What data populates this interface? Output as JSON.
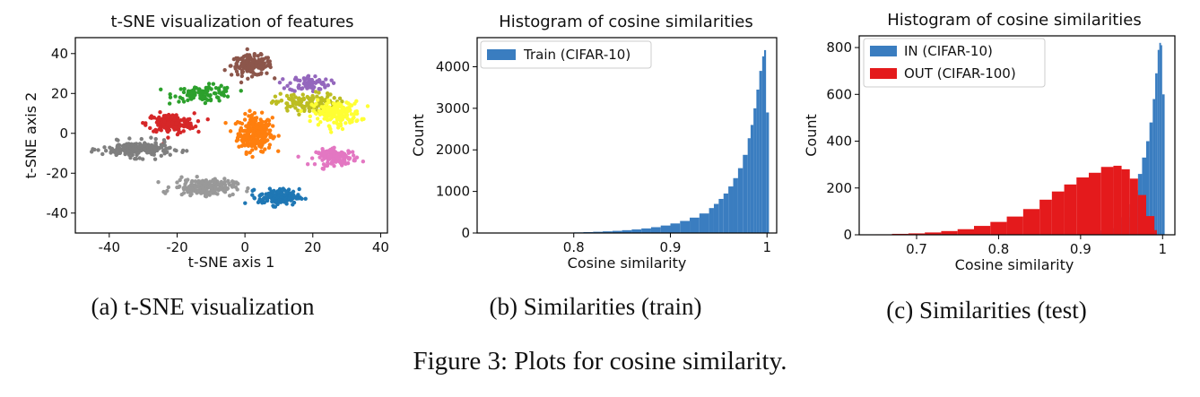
{
  "figure": {
    "caption": "Figure 3: Plots for cosine similarity.",
    "subcaptions": [
      "(a) t-SNE visualization",
      "(b) Similarities (train)",
      "(c) Similarities (test)"
    ]
  },
  "chart_data": [
    {
      "type": "scatter",
      "title": "t-SNE visualization of features",
      "xlabel": "t-SNE axis 1",
      "ylabel": "t-SNE axis 2",
      "xlim": [
        -50,
        42
      ],
      "ylim": [
        -50,
        48
      ],
      "xticks": [
        -40,
        -20,
        0,
        20,
        40
      ],
      "yticks": [
        -40,
        -20,
        0,
        20,
        40
      ],
      "clusters": [
        {
          "color": "#ff7f0e",
          "center": [
            3,
            0
          ],
          "spread": [
            5,
            9
          ],
          "n": 260
        },
        {
          "color": "#8c564b",
          "center": [
            2,
            34
          ],
          "spread": [
            6,
            5
          ],
          "n": 160
        },
        {
          "color": "#2ca02c",
          "center": [
            -12,
            20
          ],
          "spread": [
            9,
            4
          ],
          "n": 100
        },
        {
          "color": "#d62728",
          "center": [
            -22,
            5
          ],
          "spread": [
            7,
            5
          ],
          "n": 150
        },
        {
          "color": "#9467bd",
          "center": [
            19,
            25
          ],
          "spread": [
            6,
            4
          ],
          "n": 70
        },
        {
          "color": "#bcbd22",
          "center": [
            18,
            15
          ],
          "spread": [
            9,
            5
          ],
          "n": 130
        },
        {
          "color": "#ffff33",
          "center": [
            27,
            10
          ],
          "spread": [
            7,
            6
          ],
          "n": 170
        },
        {
          "color": "#e377c2",
          "center": [
            27,
            -12
          ],
          "spread": [
            6,
            4
          ],
          "n": 120
        },
        {
          "color": "#7f7f7f",
          "center": [
            -32,
            -8
          ],
          "spread": [
            10,
            4
          ],
          "n": 200
        },
        {
          "color": "#999999",
          "center": [
            -12,
            -27
          ],
          "spread": [
            9,
            4
          ],
          "n": 180
        },
        {
          "color": "#1f77b4",
          "center": [
            10,
            -32
          ],
          "spread": [
            6,
            4
          ],
          "n": 150
        }
      ]
    },
    {
      "type": "bar",
      "title": "Histogram of cosine similarities",
      "xlabel": "Cosine similarity",
      "ylabel": "Count",
      "xlim": [
        0.7,
        1.01
      ],
      "ylim": [
        0,
        4700
      ],
      "xticks": [
        0.8,
        0.9,
        1.0
      ],
      "yticks": [
        0,
        1000,
        2000,
        3000,
        4000
      ],
      "legend_position": "top-left",
      "series": [
        {
          "name": "Train (CIFAR-10)",
          "color": "#3a7dc0",
          "bins": [
            [
              0.8,
              15
            ],
            [
              0.81,
              22
            ],
            [
              0.82,
              30
            ],
            [
              0.83,
              40
            ],
            [
              0.84,
              52
            ],
            [
              0.85,
              68
            ],
            [
              0.86,
              86
            ],
            [
              0.87,
              110
            ],
            [
              0.88,
              140
            ],
            [
              0.89,
              180
            ],
            [
              0.9,
              230
            ],
            [
              0.91,
              290
            ],
            [
              0.92,
              370
            ],
            [
              0.93,
              470
            ],
            [
              0.94,
              600
            ],
            [
              0.945,
              700
            ],
            [
              0.95,
              820
            ],
            [
              0.955,
              950
            ],
            [
              0.96,
              1120
            ],
            [
              0.965,
              1320
            ],
            [
              0.97,
              1560
            ],
            [
              0.975,
              1880
            ],
            [
              0.98,
              2280
            ],
            [
              0.983,
              2600
            ],
            [
              0.986,
              3000
            ],
            [
              0.989,
              3450
            ],
            [
              0.992,
              3900
            ],
            [
              0.995,
              4250
            ],
            [
              0.997,
              4400
            ],
            [
              0.999,
              2900
            ]
          ]
        }
      ]
    },
    {
      "type": "bar",
      "title": "Histogram of cosine similarities",
      "xlabel": "Cosine similarity",
      "ylabel": "Count",
      "xlim": [
        0.63,
        1.015
      ],
      "ylim": [
        0,
        850
      ],
      "xticks": [
        0.7,
        0.8,
        0.9,
        1.0
      ],
      "yticks": [
        0,
        200,
        400,
        600,
        800
      ],
      "legend_position": "top-left",
      "series": [
        {
          "name": "IN (CIFAR-10)",
          "color": "#3a7dc0",
          "bins": [
            [
              0.9,
              8
            ],
            [
              0.91,
              12
            ],
            [
              0.92,
              18
            ],
            [
              0.93,
              28
            ],
            [
              0.94,
              45
            ],
            [
              0.95,
              75
            ],
            [
              0.96,
              130
            ],
            [
              0.965,
              190
            ],
            [
              0.97,
              260
            ],
            [
              0.975,
              330
            ],
            [
              0.98,
              400
            ],
            [
              0.984,
              480
            ],
            [
              0.988,
              580
            ],
            [
              0.991,
              690
            ],
            [
              0.994,
              790
            ],
            [
              0.996,
              820
            ],
            [
              0.998,
              810
            ],
            [
              0.9995,
              600
            ]
          ]
        },
        {
          "name": "OUT (CIFAR-100)",
          "color": "#e41a1c",
          "bins": [
            [
              0.65,
              2
            ],
            [
              0.67,
              4
            ],
            [
              0.69,
              6
            ],
            [
              0.71,
              10
            ],
            [
              0.73,
              16
            ],
            [
              0.75,
              24
            ],
            [
              0.77,
              38
            ],
            [
              0.79,
              55
            ],
            [
              0.81,
              78
            ],
            [
              0.83,
              110
            ],
            [
              0.85,
              150
            ],
            [
              0.865,
              185
            ],
            [
              0.88,
              215
            ],
            [
              0.895,
              245
            ],
            [
              0.91,
              265
            ],
            [
              0.925,
              290
            ],
            [
              0.94,
              295
            ],
            [
              0.95,
              280
            ],
            [
              0.96,
              240
            ],
            [
              0.97,
              170
            ],
            [
              0.98,
              80
            ],
            [
              0.99,
              20
            ]
          ]
        }
      ]
    }
  ]
}
